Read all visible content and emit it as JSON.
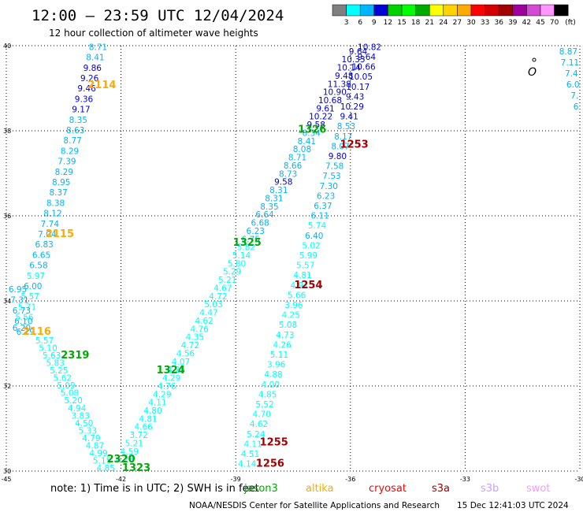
{
  "header": {
    "title": "12:00 – 23:59 UTC 12/04/2024",
    "subtitle": "12 hour collection of altimeter wave heights"
  },
  "colorbar": {
    "colors": [
      "#808080",
      "#00ffff",
      "#00b4ff",
      "#0000d7",
      "#00d200",
      "#00ff00",
      "#00aa00",
      "#ffff00",
      "#ffd200",
      "#ffaa00",
      "#ff0000",
      "#d20000",
      "#a00000",
      "#9e009e",
      "#d24bd2",
      "#ff96ff",
      "#000000"
    ],
    "labels": [
      "3",
      "6",
      "9",
      "12",
      "15",
      "18",
      "21",
      "24",
      "27",
      "30",
      "33",
      "36",
      "39",
      "42",
      "45",
      "70"
    ],
    "unit": "(ft)"
  },
  "axes": {
    "x_ticks": [
      "-45",
      "-42",
      "-39",
      "-36",
      "-33",
      "-30"
    ],
    "y_ticks": [
      "40",
      "38",
      "36",
      "34",
      "32",
      "30"
    ]
  },
  "chart_data": {
    "type": "scatter",
    "xlim": [
      -45,
      -30
    ],
    "ylim": [
      30,
      40
    ],
    "grid": true,
    "orbit_labels": [
      {
        "text": "2114",
        "color": "#ffaa00",
        "x": -42.5,
        "y": 39.0
      },
      {
        "text": "2115",
        "color": "#ffaa00",
        "x": -43.6,
        "y": 35.5
      },
      {
        "text": "2116",
        "color": "#ffaa00",
        "x": -44.2,
        "y": 33.2
      },
      {
        "text": "2319",
        "color": "#00aa00",
        "x": -43.2,
        "y": 32.65
      },
      {
        "text": "2320",
        "color": "#00aa00",
        "x": -42.0,
        "y": 30.2
      },
      {
        "text": "1323",
        "color": "#00aa00",
        "x": -41.6,
        "y": 30.0
      },
      {
        "text": "1324",
        "color": "#00aa00",
        "x": -40.7,
        "y": 32.3
      },
      {
        "text": "1325",
        "color": "#00aa00",
        "x": -38.7,
        "y": 35.3
      },
      {
        "text": "1326",
        "color": "#00aa00",
        "x": -37.0,
        "y": 37.95
      },
      {
        "text": "1253",
        "color": "#a00000",
        "x": -35.9,
        "y": 37.6
      },
      {
        "text": "1254",
        "color": "#a00000",
        "x": -37.1,
        "y": 34.3
      },
      {
        "text": "1255",
        "color": "#a00000",
        "x": -38.0,
        "y": 30.6
      },
      {
        "text": "1256",
        "color": "#a00000",
        "x": -38.1,
        "y": 30.1
      }
    ],
    "series": [
      {
        "name": "2114",
        "values": [
          "8.71",
          "8.41",
          "9.86",
          "9.26",
          "9.46",
          "9.36",
          "9.17",
          "8.35",
          "8.63",
          "8.77",
          "8.29",
          "7.39",
          "8.29",
          "8.95",
          "8.37",
          "8.38",
          "8.12",
          "7.74",
          "7.04",
          "6.83",
          "6.65",
          "6.58",
          "5.97",
          "6.00",
          "5.57",
          "5.71",
          "5.56",
          "6.20"
        ],
        "start": [
          -42.6,
          39.9
        ],
        "end": [
          -44.6,
          33.3
        ]
      },
      {
        "name": "2115",
        "values": [
          "6.95",
          "7.31",
          "6.73",
          "6.10",
          "6.29"
        ],
        "start": [
          -44.7,
          34.2
        ],
        "end": [
          -44.5,
          33.2
        ]
      },
      {
        "name": "2319",
        "values": [
          "5.57",
          "5.10",
          "5.63",
          "5.83",
          "5.25",
          "5.62",
          "5.09",
          "5.08",
          "5.20",
          "4.94",
          "3.83",
          "4.50",
          "5.33",
          "4.79",
          "4.87",
          "4.99",
          "5.15",
          "4.85"
        ],
        "start": [
          -44.0,
          33.0
        ],
        "end": [
          -42.4,
          30.0
        ]
      },
      {
        "name": "1324",
        "values": [
          "4.28",
          "4.59",
          "5.21",
          "3.72",
          "4.66",
          "4.81",
          "4.80",
          "4.11",
          "4.29",
          "4.76",
          "4.29",
          "4.25",
          "4.07",
          "4.56",
          "4.72",
          "4.35",
          "4.76",
          "4.62",
          "4.47",
          "5.03",
          "4.72",
          "4.67",
          "5.21",
          "5.29",
          "5.80",
          "5.14",
          "5.82",
          "6.75",
          "6.23",
          "6.68",
          "6.64",
          "8.35",
          "8.31",
          "8.31",
          "9.58",
          "8.73",
          "8.66",
          "8.71",
          "8.08",
          "8.41",
          "8.34",
          "9.58",
          "10.22",
          "9.61",
          "10.68",
          "10.90",
          "11.38",
          "9.48",
          "10.14",
          "10.33",
          "9.64"
        ],
        "start": [
          -41.9,
          30.2
        ],
        "end": [
          -35.8,
          39.8
        ]
      },
      {
        "name": "1255",
        "values": [
          "4.14",
          "4.51",
          "4.11",
          "5.24",
          "4.62",
          "4.70",
          "5.52",
          "4.85",
          "4.00",
          "4.88",
          "3.96",
          "5.11",
          "4.26",
          "4.73",
          "5.08",
          "4.25",
          "3.96",
          "5.66",
          "4.91",
          "4.81",
          "5.57",
          "5.99",
          "5.02",
          "6.40",
          "5.74",
          "6.11",
          "6.37",
          "6.23",
          "7.30",
          "7.53",
          "7.58",
          "9.80",
          "8.07",
          "8.17",
          "8.53",
          "9.41",
          "10.29",
          "9.43",
          "10.17",
          "10.05",
          "10.66",
          "9.64",
          "10.82"
        ],
        "start": [
          -38.7,
          30.1
        ],
        "end": [
          -35.5,
          39.9
        ]
      },
      {
        "name": "edge",
        "values": [
          "8.87",
          "7.11",
          "7.4",
          "6.0",
          "7.",
          "6"
        ],
        "start": [
          -30.3,
          39.8
        ],
        "end": [
          -30.1,
          38.5
        ]
      }
    ]
  },
  "legend": {
    "note": "note: 1) Time is in UTC; 2) SWH is in feet",
    "satellites": [
      {
        "name": "jason3",
        "color": "#00aa00"
      },
      {
        "name": "altika",
        "color": "#ffaa00"
      },
      {
        "name": "cryosat",
        "color": "#ff0000"
      },
      {
        "name": "s3a",
        "color": "#a00000"
      },
      {
        "name": "s3b",
        "color": "#c8a0ff"
      },
      {
        "name": "swot",
        "color": "#ff96ff"
      }
    ],
    "credit": "NOAA/NESDIS Center for Satellite Applications and Research",
    "timestamp": "15 Dec 12:41:03 UTC 2024"
  }
}
